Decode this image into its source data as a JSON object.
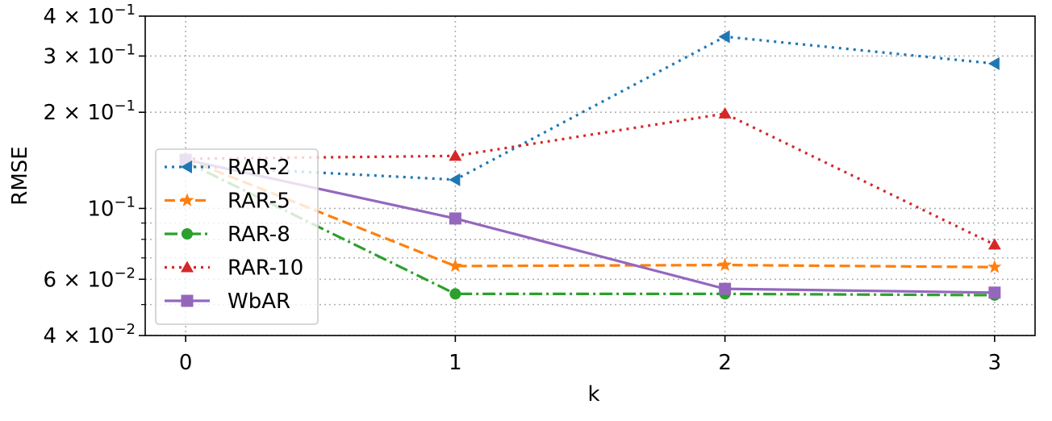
{
  "chart_data": {
    "type": "line",
    "xlabel": "k",
    "ylabel": "RMSE",
    "yscale": "log",
    "ylim": [
      0.04,
      0.4
    ],
    "xlim": [
      -0.15,
      3.15
    ],
    "x": [
      0,
      1,
      2,
      3
    ],
    "x_ticks": [
      {
        "value": 0,
        "label": "0"
      },
      {
        "value": 1,
        "label": "1"
      },
      {
        "value": 2,
        "label": "2"
      },
      {
        "value": 3,
        "label": "3"
      }
    ],
    "y_major_ticks": [
      {
        "value": 0.04,
        "mant": "4",
        "sep": " × ",
        "base": "10",
        "exp": "−2"
      },
      {
        "value": 0.06,
        "mant": "6",
        "sep": " × ",
        "base": "10",
        "exp": "−2"
      },
      {
        "value": 0.1,
        "mant": "",
        "sep": "",
        "base": "10",
        "exp": "−1"
      },
      {
        "value": 0.2,
        "mant": "2",
        "sep": " × ",
        "base": "10",
        "exp": "−1"
      },
      {
        "value": 0.3,
        "mant": "3",
        "sep": " × ",
        "base": "10",
        "exp": "−1"
      },
      {
        "value": 0.4,
        "mant": "4",
        "sep": " × ",
        "base": "10",
        "exp": "−1"
      }
    ],
    "y_minor_ticks": [
      0.05,
      0.07,
      0.08,
      0.09
    ],
    "grid": true,
    "legend_position": "center-left",
    "series": [
      {
        "name": "RAR-2",
        "values": [
          0.136,
          0.123,
          0.345,
          0.284
        ],
        "color": "#1f77b4",
        "linestyle": "dotted",
        "marker": "triangle-left"
      },
      {
        "name": "RAR-5",
        "values": [
          0.143,
          0.066,
          0.0665,
          0.0655
        ],
        "color": "#ff7f0e",
        "linestyle": "dashed",
        "marker": "star"
      },
      {
        "name": "RAR-8",
        "values": [
          0.14,
          0.054,
          0.054,
          0.0535
        ],
        "color": "#2ca02c",
        "linestyle": "dashdot",
        "marker": "circle"
      },
      {
        "name": "RAR-10",
        "values": [
          0.143,
          0.146,
          0.198,
          0.077
        ],
        "color": "#d62728",
        "linestyle": "dotted",
        "marker": "triangle-up"
      },
      {
        "name": "WbAR",
        "values": [
          0.142,
          0.093,
          0.056,
          0.0545
        ],
        "color": "#9467bd",
        "linestyle": "solid",
        "marker": "square"
      }
    ]
  }
}
